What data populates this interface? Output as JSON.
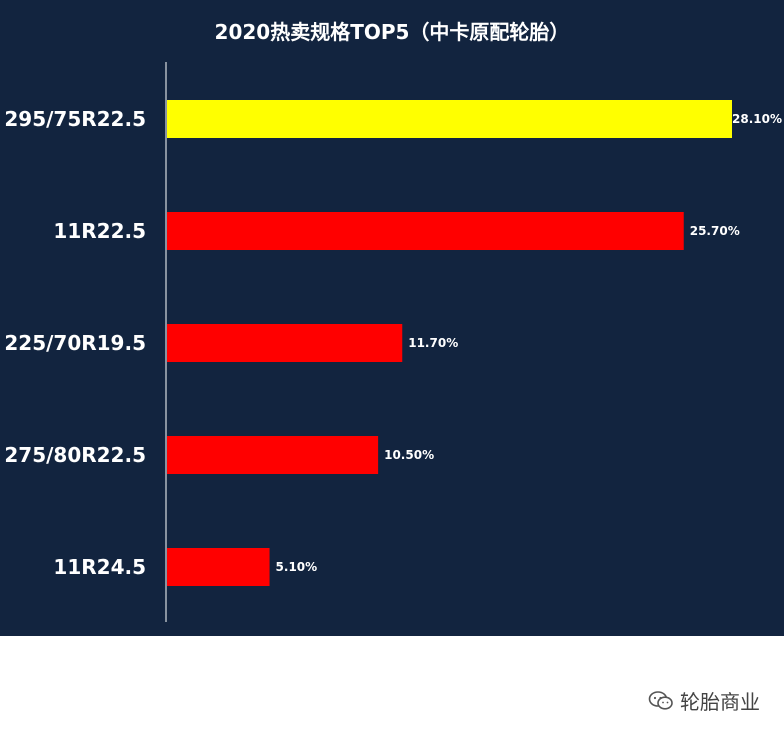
{
  "chart_data": {
    "type": "bar",
    "orientation": "horizontal",
    "title": "2020热卖规格TOP5（中卡原配轮胎）",
    "categories": [
      "295/75R22.5",
      "11R22.5",
      "225/70R19.5",
      "275/80R22.5",
      "11R24.5"
    ],
    "values": [
      28.1,
      25.7,
      11.7,
      10.5,
      5.1
    ],
    "value_labels": [
      "28.10%",
      "25.70%",
      "11.70%",
      "10.50%",
      "5.10%"
    ],
    "bar_colors": [
      "#ffff00",
      "#ff0000",
      "#ff0000",
      "#ff0000",
      "#ff0000"
    ],
    "xlim": [
      0,
      28.1
    ],
    "grid": false,
    "background_color": "#12243f"
  },
  "watermark": {
    "icon": "wechat-icon",
    "text": "轮胎商业"
  }
}
